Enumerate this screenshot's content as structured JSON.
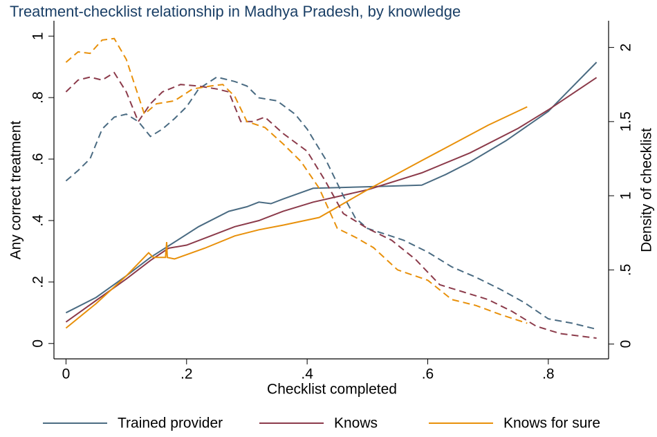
{
  "chart_data": {
    "type": "line",
    "title": "Treatment-checklist relationship in Madhya Pradesh, by knowledge",
    "x_label": "Checklist completed",
    "y_label": "Any correct treatment",
    "y2_label": "Density of checklist",
    "xlim": [
      -0.02,
      0.9
    ],
    "xticks": [
      0,
      {
        "value": 0.2,
        "label": ".2"
      },
      {
        "value": 0.4,
        "label": ".4"
      },
      {
        "value": 0.6,
        "label": ".6"
      },
      {
        "value": 0.8,
        "label": ".8"
      }
    ],
    "ylim": [
      -0.05,
      1.05
    ],
    "yticks": [
      0,
      {
        "value": 0.2,
        "label": ".2"
      },
      {
        "value": 0.4,
        "label": ".4"
      },
      {
        "value": 0.6,
        "label": ".6"
      },
      {
        "value": 0.8,
        "label": ".8"
      },
      1
    ],
    "y2lim": [
      -0.1,
      2.18
    ],
    "y2ticks": [
      0,
      {
        "value": 0.5,
        "label": ".5"
      },
      1,
      1.5,
      2
    ],
    "series": [
      {
        "name": "Trained provider",
        "color": "#4a6b82",
        "style": "solid",
        "x": [
          0,
          0.05,
          0.1,
          0.14,
          0.18,
          0.22,
          0.27,
          0.3,
          0.32,
          0.34,
          0.36,
          0.41,
          0.5,
          0.59,
          0.63,
          0.67,
          0.73,
          0.8,
          0.88
        ],
        "values": [
          0.1,
          0.15,
          0.22,
          0.28,
          0.33,
          0.38,
          0.43,
          0.445,
          0.46,
          0.455,
          0.47,
          0.505,
          0.51,
          0.515,
          0.55,
          0.59,
          0.66,
          0.755,
          0.915
        ]
      },
      {
        "name": "Knows",
        "color": "#8b3a4a",
        "style": "solid",
        "x": [
          0,
          0.05,
          0.1,
          0.14,
          0.17,
          0.2,
          0.24,
          0.28,
          0.32,
          0.36,
          0.41,
          0.5,
          0.59,
          0.67,
          0.75,
          0.8,
          0.88
        ],
        "values": [
          0.07,
          0.14,
          0.21,
          0.27,
          0.31,
          0.32,
          0.35,
          0.38,
          0.4,
          0.43,
          0.46,
          0.5,
          0.555,
          0.62,
          0.7,
          0.76,
          0.865
        ]
      },
      {
        "name": "Knows for sure",
        "color": "#e8900a",
        "style": "solid",
        "x": [
          0,
          0.05,
          0.1,
          0.137,
          0.145,
          0.165,
          0.167,
          0.168,
          0.18,
          0.23,
          0.28,
          0.32,
          0.36,
          0.42,
          0.5,
          0.59,
          0.7,
          0.765
        ],
        "values": [
          0.05,
          0.13,
          0.22,
          0.295,
          0.28,
          0.28,
          0.33,
          0.28,
          0.275,
          0.31,
          0.35,
          0.37,
          0.385,
          0.41,
          0.5,
          0.595,
          0.71,
          0.77
        ]
      },
      {
        "color": "#4a6b82",
        "style": "dashed",
        "axis": "y2",
        "x": [
          0,
          0.02,
          0.04,
          0.06,
          0.08,
          0.1,
          0.12,
          0.14,
          0.16,
          0.18,
          0.2,
          0.22,
          0.25,
          0.28,
          0.3,
          0.32,
          0.35,
          0.38,
          0.4,
          0.43,
          0.46,
          0.48,
          0.5,
          0.53,
          0.56,
          0.6,
          0.64,
          0.68,
          0.72,
          0.76,
          0.8,
          0.84,
          0.88
        ],
        "values": [
          1.1,
          1.17,
          1.25,
          1.45,
          1.53,
          1.55,
          1.5,
          1.4,
          1.45,
          1.52,
          1.6,
          1.72,
          1.8,
          1.77,
          1.74,
          1.66,
          1.64,
          1.55,
          1.45,
          1.25,
          1.0,
          0.85,
          0.78,
          0.74,
          0.7,
          0.62,
          0.52,
          0.45,
          0.37,
          0.28,
          0.17,
          0.14,
          0.1
        ]
      },
      {
        "color": "#8b3a4a",
        "style": "dashed",
        "axis": "y2",
        "x": [
          0,
          0.02,
          0.04,
          0.06,
          0.08,
          0.1,
          0.12,
          0.14,
          0.16,
          0.19,
          0.22,
          0.25,
          0.27,
          0.29,
          0.31,
          0.33,
          0.36,
          0.4,
          0.43,
          0.46,
          0.5,
          0.54,
          0.58,
          0.62,
          0.66,
          0.7,
          0.74,
          0.78,
          0.82,
          0.88
        ],
        "values": [
          1.7,
          1.78,
          1.8,
          1.78,
          1.83,
          1.7,
          1.5,
          1.62,
          1.7,
          1.75,
          1.74,
          1.72,
          1.7,
          1.5,
          1.5,
          1.53,
          1.42,
          1.3,
          1.1,
          0.88,
          0.78,
          0.7,
          0.57,
          0.4,
          0.35,
          0.3,
          0.22,
          0.12,
          0.07,
          0.04
        ]
      },
      {
        "color": "#e8900a",
        "style": "dashed",
        "axis": "y2",
        "x": [
          0,
          0.02,
          0.04,
          0.06,
          0.08,
          0.1,
          0.13,
          0.15,
          0.18,
          0.21,
          0.24,
          0.26,
          0.28,
          0.3,
          0.33,
          0.36,
          0.39,
          0.42,
          0.45,
          0.48,
          0.51,
          0.55,
          0.6,
          0.64,
          0.68,
          0.72,
          0.765
        ],
        "values": [
          1.9,
          1.97,
          1.96,
          2.05,
          2.06,
          1.92,
          1.55,
          1.62,
          1.64,
          1.72,
          1.74,
          1.75,
          1.67,
          1.5,
          1.46,
          1.35,
          1.23,
          1.05,
          0.78,
          0.72,
          0.65,
          0.5,
          0.43,
          0.3,
          0.26,
          0.2,
          0.14
        ]
      }
    ]
  }
}
